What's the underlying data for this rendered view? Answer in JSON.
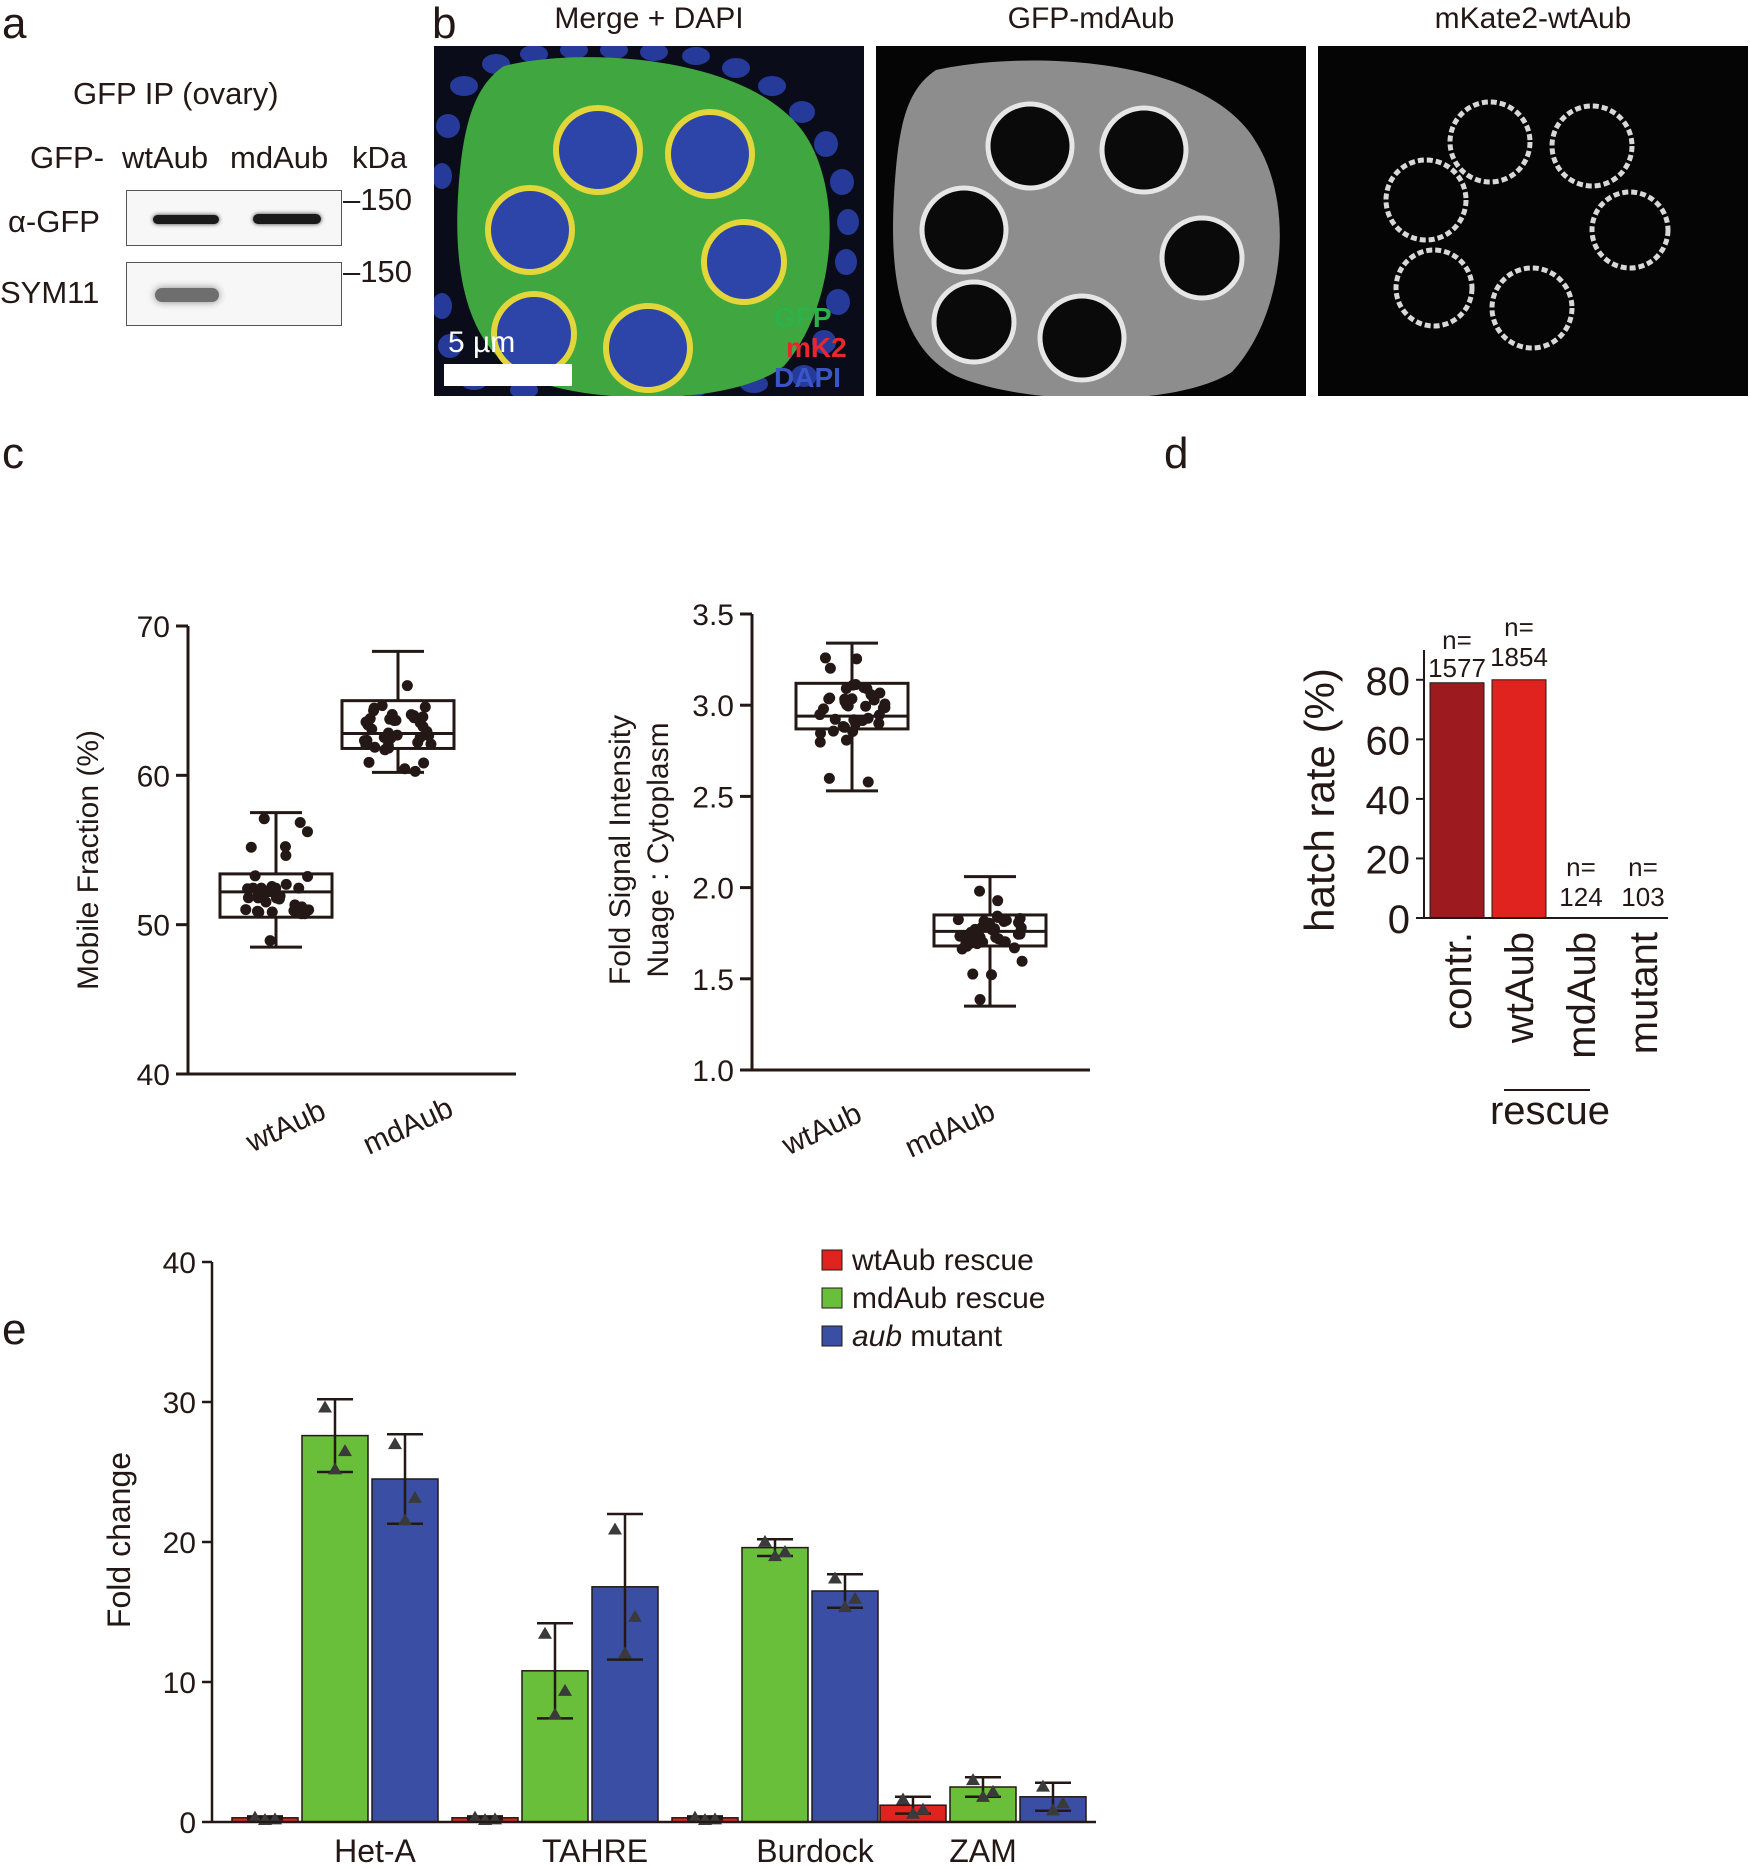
{
  "panels": {
    "a": "a",
    "b": "b",
    "c": "c",
    "d": "d",
    "e": "e"
  },
  "panel_a": {
    "title": "GFP IP (ovary)",
    "row_prefix": "GFP-",
    "lanes": [
      "wtAub",
      "mdAub"
    ],
    "unit": "kDa",
    "blots": [
      {
        "label": "α-GFP",
        "marker": "–150",
        "bands": [
          true,
          true
        ]
      },
      {
        "label": "SYM11",
        "marker": "–150",
        "bands": [
          true,
          false
        ]
      }
    ]
  },
  "panel_b": {
    "images": [
      {
        "title": "Merge + DAPI"
      },
      {
        "title": "GFP-mdAub"
      },
      {
        "title": "mKate2-wtAub"
      }
    ],
    "channels": [
      {
        "name": "GFP",
        "color": "#2bb24a"
      },
      {
        "name": "mK2",
        "color": "#e8262f"
      },
      {
        "name": "DAPI",
        "color": "#3a55c8"
      }
    ],
    "scale_bar": "5 µm"
  },
  "chart_data": [
    {
      "type": "box",
      "ylabel": "Mobile Fraction (%)",
      "ylim": [
        40,
        70
      ],
      "yticks": [
        40,
        50,
        60,
        70
      ],
      "categories": [
        "wtAub",
        "mdAub"
      ],
      "boxes": [
        {
          "name": "wtAub",
          "min": 48.5,
          "q1": 50.5,
          "median": 52.2,
          "q3": 53.4,
          "max": 57.5
        },
        {
          "name": "mdAub",
          "min": 60.2,
          "q1": 61.8,
          "median": 62.8,
          "q3": 65.0,
          "max": 68.3
        }
      ]
    },
    {
      "type": "box",
      "ylabel": "Fold Signal Intensity Nuage : Cytoplasm",
      "ylabel_lines": [
        "Fold Signal Intensity",
        "Nuage : Cytoplasm"
      ],
      "ylim": [
        1.0,
        3.5
      ],
      "yticks": [
        "1.0",
        "1.5",
        "2.0",
        "2.5",
        "3.0",
        "3.5"
      ],
      "categories": [
        "wtAub",
        "mdAub"
      ],
      "boxes": [
        {
          "name": "wtAub",
          "min": 2.53,
          "q1": 2.87,
          "median": 2.94,
          "q3": 3.12,
          "max": 3.34
        },
        {
          "name": "mdAub",
          "min": 1.35,
          "q1": 1.68,
          "median": 1.76,
          "q3": 1.85,
          "max": 2.06
        }
      ]
    },
    {
      "type": "bar",
      "ylabel": "hatch rate (%)",
      "ylim": [
        0,
        90
      ],
      "yticks": [
        0,
        20,
        40,
        60,
        80
      ],
      "categories": [
        "contr.",
        "wtAub",
        "mdAub",
        "mutant"
      ],
      "values": [
        79,
        80,
        0,
        0
      ],
      "colors": [
        "#9d1a1e",
        "#e0231f",
        "#cccccc",
        "#cccccc"
      ],
      "n_labels": [
        {
          "prefix": "n=",
          "value": "1577"
        },
        {
          "prefix": "n=",
          "value": "1854"
        },
        {
          "prefix": "n=",
          "value": "124"
        },
        {
          "prefix": "n=",
          "value": "103"
        }
      ],
      "group_label": "rescue"
    },
    {
      "type": "bar",
      "ylabel": "Fold change",
      "ylim": [
        0,
        40
      ],
      "yticks": [
        0,
        10,
        20,
        30,
        40
      ],
      "categories": [
        "Het-A",
        "TAHRE",
        "Burdock",
        "ZAM"
      ],
      "legend": [
        {
          "name_italic": "",
          "name": "wtAub rescue",
          "color": "#e0231f"
        },
        {
          "name_italic": "",
          "name": "mdAub rescue",
          "color": "#6abf3a"
        },
        {
          "name_italic": "aub",
          "name": " mutant",
          "color": "#3a4fa3"
        }
      ],
      "series": [
        {
          "name": "wtAub rescue",
          "values": [
            0.3,
            0.3,
            0.3,
            1.2
          ],
          "errors": [
            0.1,
            0.1,
            0.1,
            0.6
          ],
          "color": "#e0231f"
        },
        {
          "name": "mdAub rescue",
          "values": [
            27.6,
            10.8,
            19.6,
            2.5
          ],
          "errors": [
            2.6,
            3.4,
            0.6,
            0.7
          ],
          "color": "#6abf3a"
        },
        {
          "name": "aub mutant",
          "values": [
            24.5,
            16.8,
            16.5,
            1.8
          ],
          "errors": [
            3.2,
            5.2,
            1.2,
            1.0
          ],
          "color": "#3a4fa3"
        }
      ]
    }
  ]
}
